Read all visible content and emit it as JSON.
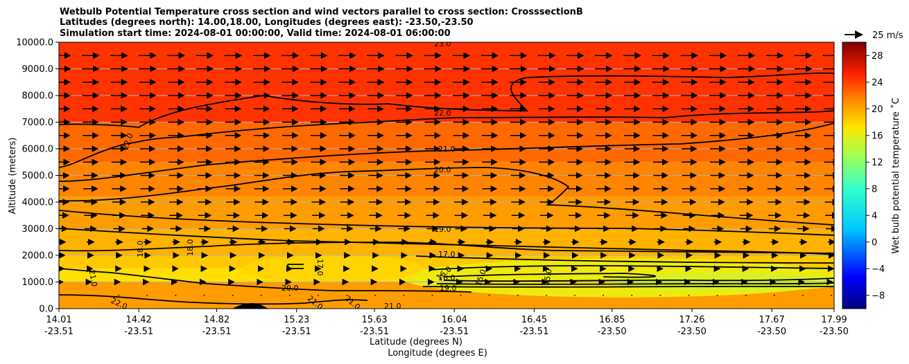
{
  "chart_data": {
    "type": "heatmap",
    "title_lines": [
      "Wetbulb Potential Temperature cross section and wind vectors parallel to cross section: CrosssectionB",
      "Latitudes (degrees north): 14.00,18.00, Longitudes (degrees east): -23.50,-23.50",
      "Simulation start time: 2024-08-01 00:00:00, Valid time: 2024-08-01 06:00:00"
    ],
    "ylabel": "Altitude (meters)",
    "xlabel_lat": "Latitude (degrees N)",
    "xlabel_lon": "Longitude (degrees E)",
    "ylim": [
      0,
      10000
    ],
    "y_ticks": [
      "0.0",
      "1000.0",
      "2000.0",
      "3000.0",
      "4000.0",
      "5000.0",
      "6000.0",
      "7000.0",
      "8000.0",
      "9000.0",
      "10000.0"
    ],
    "y_tick_values": [
      0,
      1000,
      2000,
      3000,
      4000,
      5000,
      6000,
      7000,
      8000,
      9000,
      10000
    ],
    "x_range": [
      14.01,
      17.99
    ],
    "x_tick_lat": [
      "14.01",
      "14.42",
      "14.82",
      "15.23",
      "15.63",
      "16.04",
      "16.45",
      "16.85",
      "17.26",
      "17.67",
      "17.99"
    ],
    "x_tick_lon": [
      "-23.51",
      "-23.51",
      "-23.51",
      "-23.51",
      "-23.51",
      "-23.51",
      "-23.51",
      "-23.50",
      "-23.50",
      "-23.50",
      "-23.50"
    ],
    "x_tick_values": [
      14.01,
      14.42,
      14.82,
      15.23,
      15.63,
      16.04,
      16.45,
      16.85,
      17.26,
      17.67,
      17.99
    ],
    "grid": "horizontal",
    "colorbar": {
      "label": "Wet bulb potential temperature ˚C",
      "range": [
        -10,
        30
      ],
      "ticks": [
        "28",
        "24",
        "20",
        "16",
        "12",
        "8",
        "4",
        "0",
        "−4",
        "−8"
      ],
      "tick_values": [
        28,
        24,
        20,
        16,
        12,
        8,
        4,
        0,
        -4,
        -8
      ]
    },
    "quiver_key": {
      "label": "25 m/s",
      "speed": 25
    },
    "contour_levels": [
      {
        "value": 23.0,
        "label": "23.0"
      },
      {
        "value": 22.0,
        "label": "22.0"
      },
      {
        "value": 21.0,
        "label": "21.0"
      },
      {
        "value": 20.0,
        "label": "20.0"
      },
      {
        "value": 19.0,
        "label": "19.0"
      },
      {
        "value": 18.0,
        "label": "18.0"
      },
      {
        "value": 17.0,
        "label": "17.0"
      },
      {
        "value": 16.0,
        "label": "16.0"
      },
      {
        "value": 15.0,
        "label": "15.0"
      }
    ],
    "contour_label_text": [
      "23.0",
      "22.0",
      "22.0",
      "21.0",
      "20.0",
      "19.0",
      "18.0",
      "18.0",
      "17.0",
      "17.0",
      "16.0",
      "16.0",
      "15.0",
      "15.0",
      "21.0",
      "20.0",
      "19.0",
      "21.0",
      "21.0",
      "21.0",
      "22.0"
    ],
    "temperature_layers": [
      {
        "top_m": 10000,
        "value": 24.5
      },
      {
        "top_m": 7000,
        "value": 22.5
      },
      {
        "top_m": 5500,
        "value": 21.5
      },
      {
        "top_m": 4200,
        "value": 20.5
      },
      {
        "top_m": 3000,
        "value": 19.5
      },
      {
        "top_m": 2000,
        "value": 18.5
      },
      {
        "top_m": 1500,
        "value": 17.5
      },
      {
        "top_m": 1000,
        "value": 20.5
      }
    ],
    "vector_rows_m": [
      9500,
      9000,
      8500,
      8000,
      7500,
      7000,
      6500,
      6000,
      5500,
      5000,
      4500,
      4000,
      3500,
      3000,
      2500,
      2000,
      1500,
      1000,
      500
    ],
    "vector_speeds_ms": [
      24,
      24,
      23,
      23,
      22,
      22,
      22,
      21,
      21,
      20,
      20,
      19,
      18,
      16,
      10,
      8,
      6,
      3,
      1
    ]
  }
}
